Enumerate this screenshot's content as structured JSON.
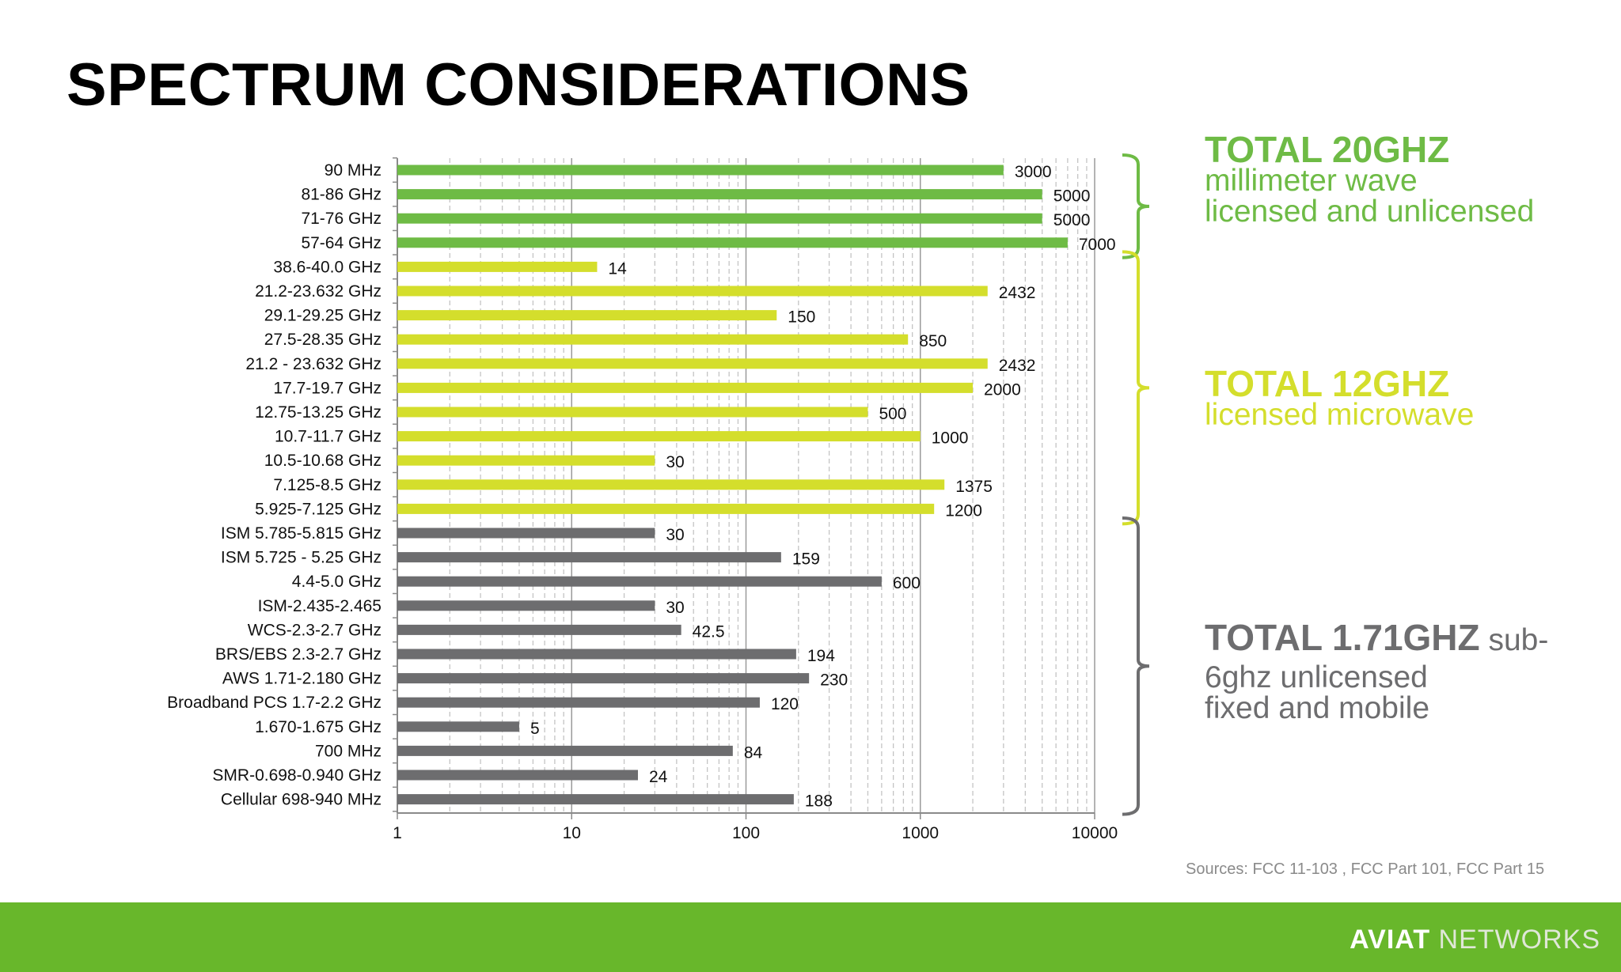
{
  "slide": {
    "title": "SPECTRUM CONSIDERATIONS",
    "sources": "Sources: FCC 11-103 , FCC Part 101, FCC Part 15",
    "logo": {
      "word1": "AVIAT",
      "word2": "NETWORKS"
    }
  },
  "colors": {
    "mmwave": "#6ebb45",
    "microwave": "#d4de2c",
    "sub6": "#6d6d6f",
    "footer": "#68b72b"
  },
  "groups": [
    {
      "total": "TOTAL 20GHZ",
      "sub_lines": [
        "millimeter wave",
        "licensed and unlicensed"
      ],
      "color": "#6ebb45"
    },
    {
      "total": "TOTAL 12GHZ",
      "sub_lines": [
        "licensed microwave"
      ],
      "color": "#d4de2c"
    },
    {
      "total": "TOTAL 1.71GHZ",
      "total_suffix": " sub-",
      "sub_lines": [
        "6ghz unlicensed",
        "fixed and mobile"
      ],
      "color": "#6d6d6f"
    }
  ],
  "chart_data": {
    "type": "bar",
    "orientation": "horizontal",
    "x_scale": "log",
    "xlim": [
      1,
      10000
    ],
    "x_ticks": [
      "1",
      "10",
      "100",
      "1000",
      "10000"
    ],
    "grid": "vertical, dashed minor",
    "categories": [
      "90 MHz",
      "81-86  GHz",
      "71-76   GHz",
      "57-64 GHz",
      "38.6-40.0 GHz",
      "21.2-23.632 GHz",
      "29.1-29.25 GHz",
      "27.5-28.35 GHz",
      "21.2 - 23.632 GHz",
      "17.7-19.7 GHz",
      "12.75-13.25 GHz",
      "10.7-11.7 GHz",
      "10.5-10.68 GHz",
      "7.125-8.5 GHz",
      "5.925-7.125 GHz",
      "ISM 5.785-5.815 GHz",
      "ISM 5.725 - 5.25 GHz",
      "4.4-5.0 GHz",
      "ISM-2.435-2.465",
      "WCS-2.3-2.7 GHz",
      "BRS/EBS 2.3-2.7 GHz",
      "AWS 1.71-2.180 GHz",
      "Broadband PCS 1.7-2.2 GHz",
      "1.670-1.675 GHz",
      "700 MHz",
      "SMR-0.698-0.940 GHz",
      "Cellular 698-940 MHz"
    ],
    "values": [
      3000,
      5000,
      5000,
      7000,
      14,
      2432,
      150,
      850,
      2432,
      2000,
      500,
      1000,
      30,
      1375,
      1200,
      30,
      159,
      600,
      30,
      42.5,
      194,
      230,
      120,
      5,
      84,
      24,
      188
    ],
    "value_labels": [
      "3000",
      "5000",
      "5000",
      "7000",
      "14",
      "2432",
      "150",
      "850",
      "2432",
      "2000",
      "500",
      "1000",
      "30",
      "1375",
      "1200",
      "30",
      "159",
      "600",
      "30",
      "42.5",
      "194",
      "230",
      "120",
      "5",
      "84",
      "24",
      "188"
    ],
    "bar_group": [
      0,
      0,
      0,
      0,
      1,
      1,
      1,
      1,
      1,
      1,
      1,
      1,
      1,
      1,
      1,
      2,
      2,
      2,
      2,
      2,
      2,
      2,
      2,
      2,
      2,
      2,
      2
    ]
  }
}
